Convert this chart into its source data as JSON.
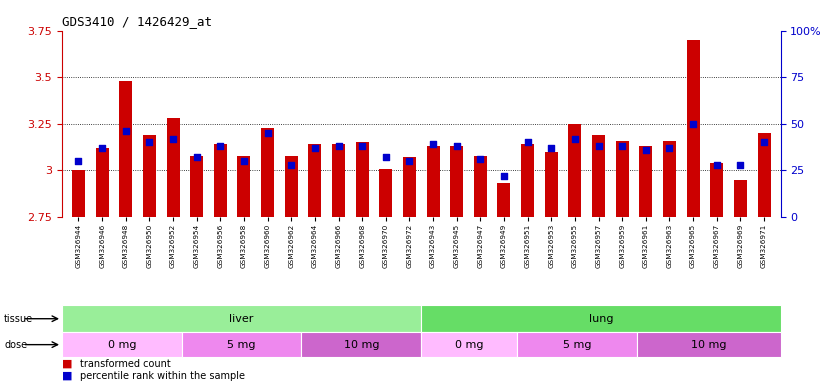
{
  "title": "GDS3410 / 1426429_at",
  "samples": [
    "GSM326944",
    "GSM326946",
    "GSM326948",
    "GSM326950",
    "GSM326952",
    "GSM326954",
    "GSM326956",
    "GSM326958",
    "GSM326960",
    "GSM326962",
    "GSM326964",
    "GSM326966",
    "GSM326968",
    "GSM326970",
    "GSM326972",
    "GSM326943",
    "GSM326945",
    "GSM326947",
    "GSM326949",
    "GSM326951",
    "GSM326953",
    "GSM326955",
    "GSM326957",
    "GSM326959",
    "GSM326961",
    "GSM326963",
    "GSM326965",
    "GSM326967",
    "GSM326969",
    "GSM326971"
  ],
  "transformed_counts": [
    3.0,
    3.12,
    3.48,
    3.19,
    3.28,
    3.08,
    3.14,
    3.08,
    3.23,
    3.08,
    3.14,
    3.14,
    3.15,
    3.01,
    3.07,
    3.13,
    3.13,
    3.08,
    2.93,
    3.14,
    3.1,
    3.25,
    3.19,
    3.16,
    3.13,
    3.16,
    3.7,
    3.04,
    2.95,
    3.2
  ],
  "percentile_ranks": [
    30,
    37,
    46,
    40,
    42,
    32,
    38,
    30,
    45,
    28,
    37,
    38,
    38,
    32,
    30,
    39,
    38,
    31,
    22,
    40,
    37,
    42,
    38,
    38,
    36,
    37,
    50,
    28,
    28,
    40
  ],
  "ylim_left": [
    2.75,
    3.75
  ],
  "ylim_right": [
    0,
    100
  ],
  "yticks_left": [
    2.75,
    3.0,
    3.25,
    3.5,
    3.75
  ],
  "yticks_right": [
    0,
    25,
    50,
    75,
    100
  ],
  "ytick_labels_left": [
    "2.75",
    "3",
    "3.25",
    "3.5",
    "3.75"
  ],
  "ytick_labels_right": [
    "0",
    "25",
    "50",
    "75",
    "100%"
  ],
  "bar_bottom": 2.75,
  "bar_color": "#cc0000",
  "percentile_color": "#0000cc",
  "tissue_groups": [
    {
      "label": "liver",
      "start": 0,
      "end": 15,
      "color": "#88dd88"
    },
    {
      "label": "lung",
      "start": 15,
      "end": 30,
      "color": "#55cc55"
    }
  ],
  "dose_groups": [
    {
      "label": "0 mg",
      "start": 0,
      "end": 5,
      "color": "#ffbbff"
    },
    {
      "label": "5 mg",
      "start": 5,
      "end": 10,
      "color": "#ee88ee"
    },
    {
      "label": "10 mg",
      "start": 10,
      "end": 15,
      "color": "#cc66cc"
    },
    {
      "label": "0 mg",
      "start": 15,
      "end": 19,
      "color": "#ffbbff"
    },
    {
      "label": "5 mg",
      "start": 19,
      "end": 24,
      "color": "#ee88ee"
    },
    {
      "label": "10 mg",
      "start": 24,
      "end": 30,
      "color": "#cc66cc"
    }
  ],
  "legend_items": [
    {
      "label": "transformed count",
      "color": "#cc0000"
    },
    {
      "label": "percentile rank within the sample",
      "color": "#0000cc"
    }
  ],
  "plot_bg": "#ffffff",
  "label_bg": "#cccccc"
}
